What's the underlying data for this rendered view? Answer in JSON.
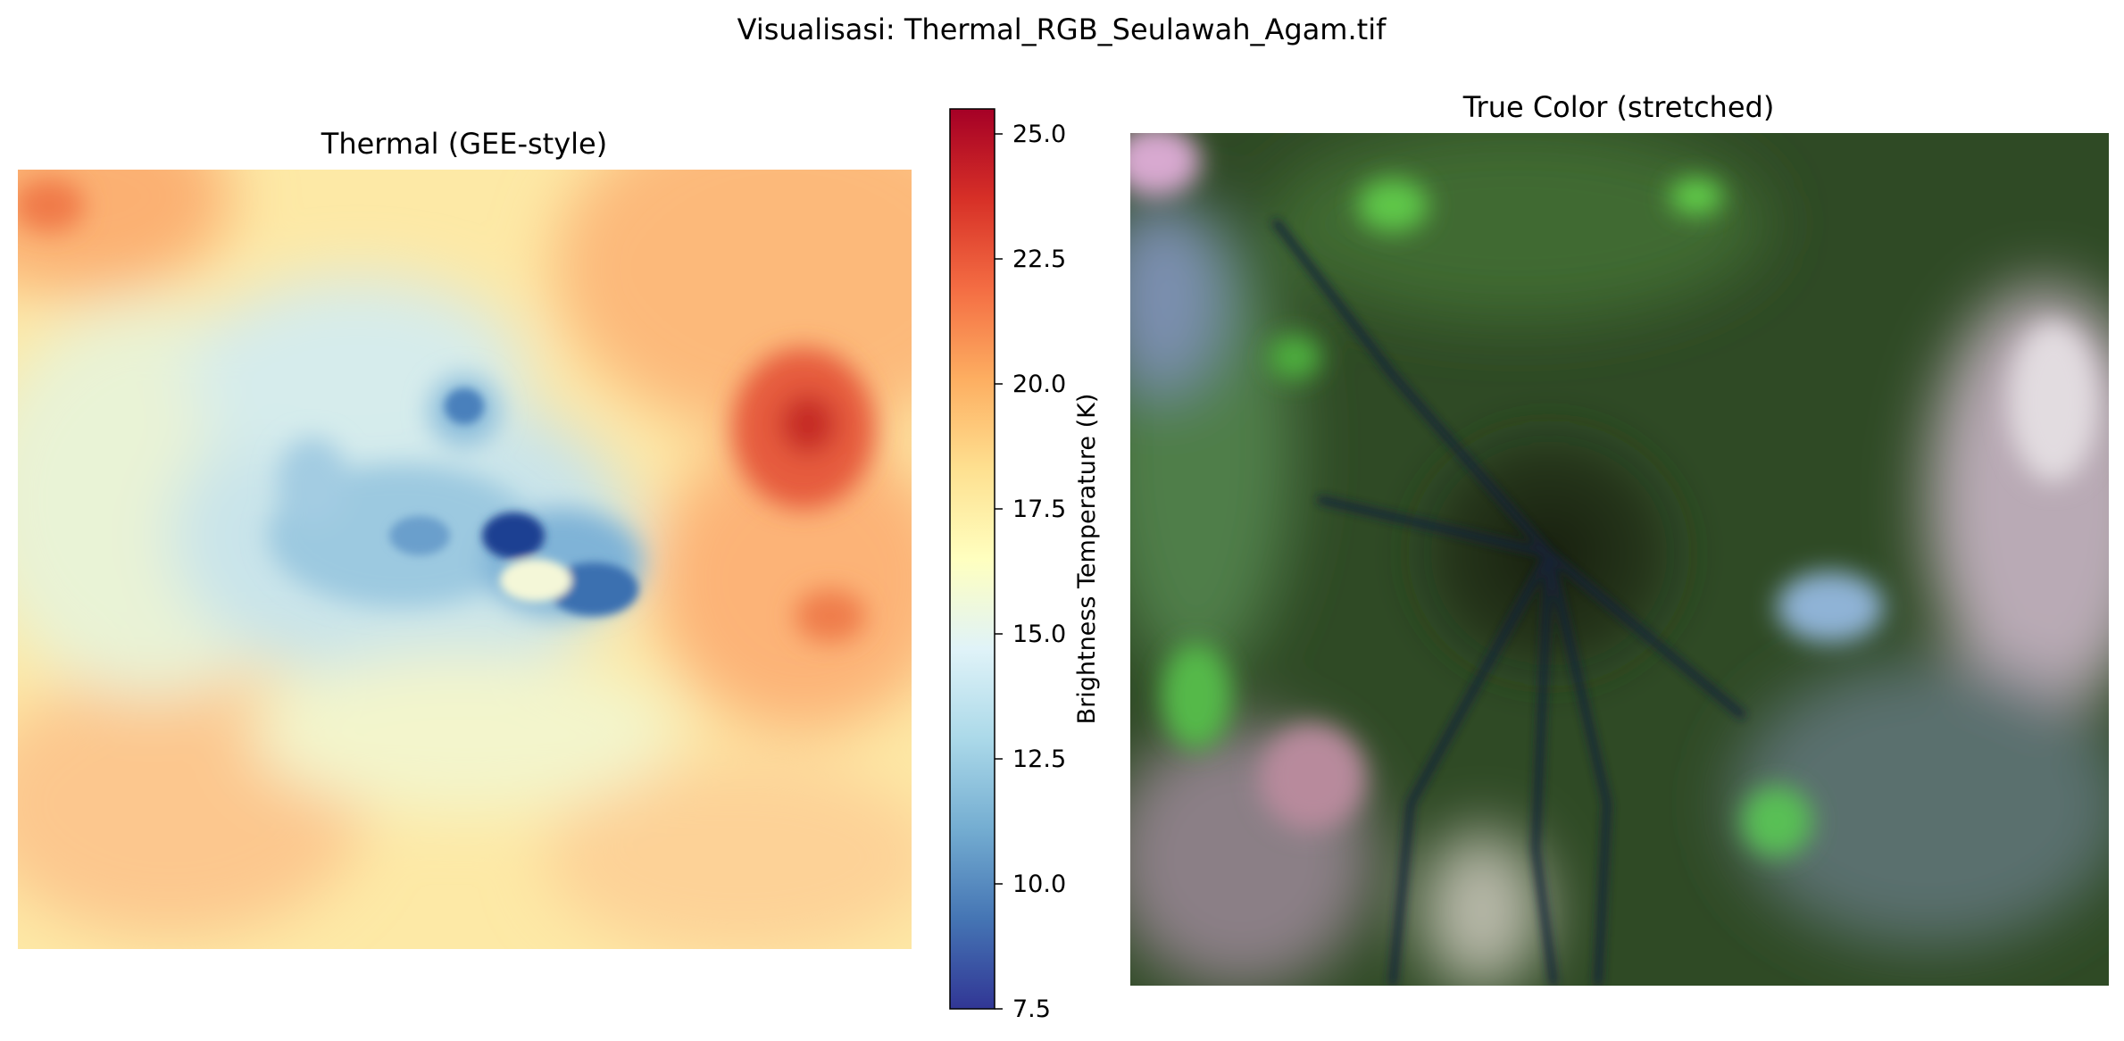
{
  "figure": {
    "suptitle": "Visualisasi: Thermal_RGB_Seulawah_Agam.tif"
  },
  "chart_data": [
    {
      "type": "heatmap",
      "title": "Thermal (GEE-style)",
      "colormap": "RdYlBu_r",
      "vmin": 7.5,
      "vmax": 25.5,
      "colorbar": {
        "label": "Brightness Temperature (K)",
        "ticks": [
          "7.5",
          "10.0",
          "12.5",
          "15.0",
          "17.5",
          "20.0",
          "22.5",
          "25.0"
        ],
        "tick_values": [
          7.5,
          10.0,
          12.5,
          15.0,
          17.5,
          20.0,
          22.5,
          25.0
        ]
      },
      "axes": "off",
      "features": [
        {
          "kind": "cold_spot",
          "value": 8.5,
          "x": 0.56,
          "y": 0.47
        },
        {
          "kind": "cold_spot",
          "value": 11.5,
          "x": 0.64,
          "y": 0.54
        },
        {
          "kind": "cool_zone",
          "value": 14.5,
          "x": 0.45,
          "y": 0.5
        },
        {
          "kind": "warm_spot",
          "value": 24.5,
          "x": 0.88,
          "y": 0.34
        },
        {
          "kind": "warm_spot",
          "value": 23.0,
          "x": 0.05,
          "y": 0.04
        },
        {
          "kind": "warm_zone",
          "value": 21.5,
          "x": 0.18,
          "y": 0.78
        }
      ]
    },
    {
      "type": "image",
      "title": "True Color (stretched)",
      "axes": "off",
      "colors": {
        "forest": "#2d4a1f",
        "summit": "#1c2515",
        "bright_vegetation": "#4fd63f",
        "bare_soil": "#c9b6b8",
        "shadow_valleys": "#1a2440"
      }
    }
  ]
}
